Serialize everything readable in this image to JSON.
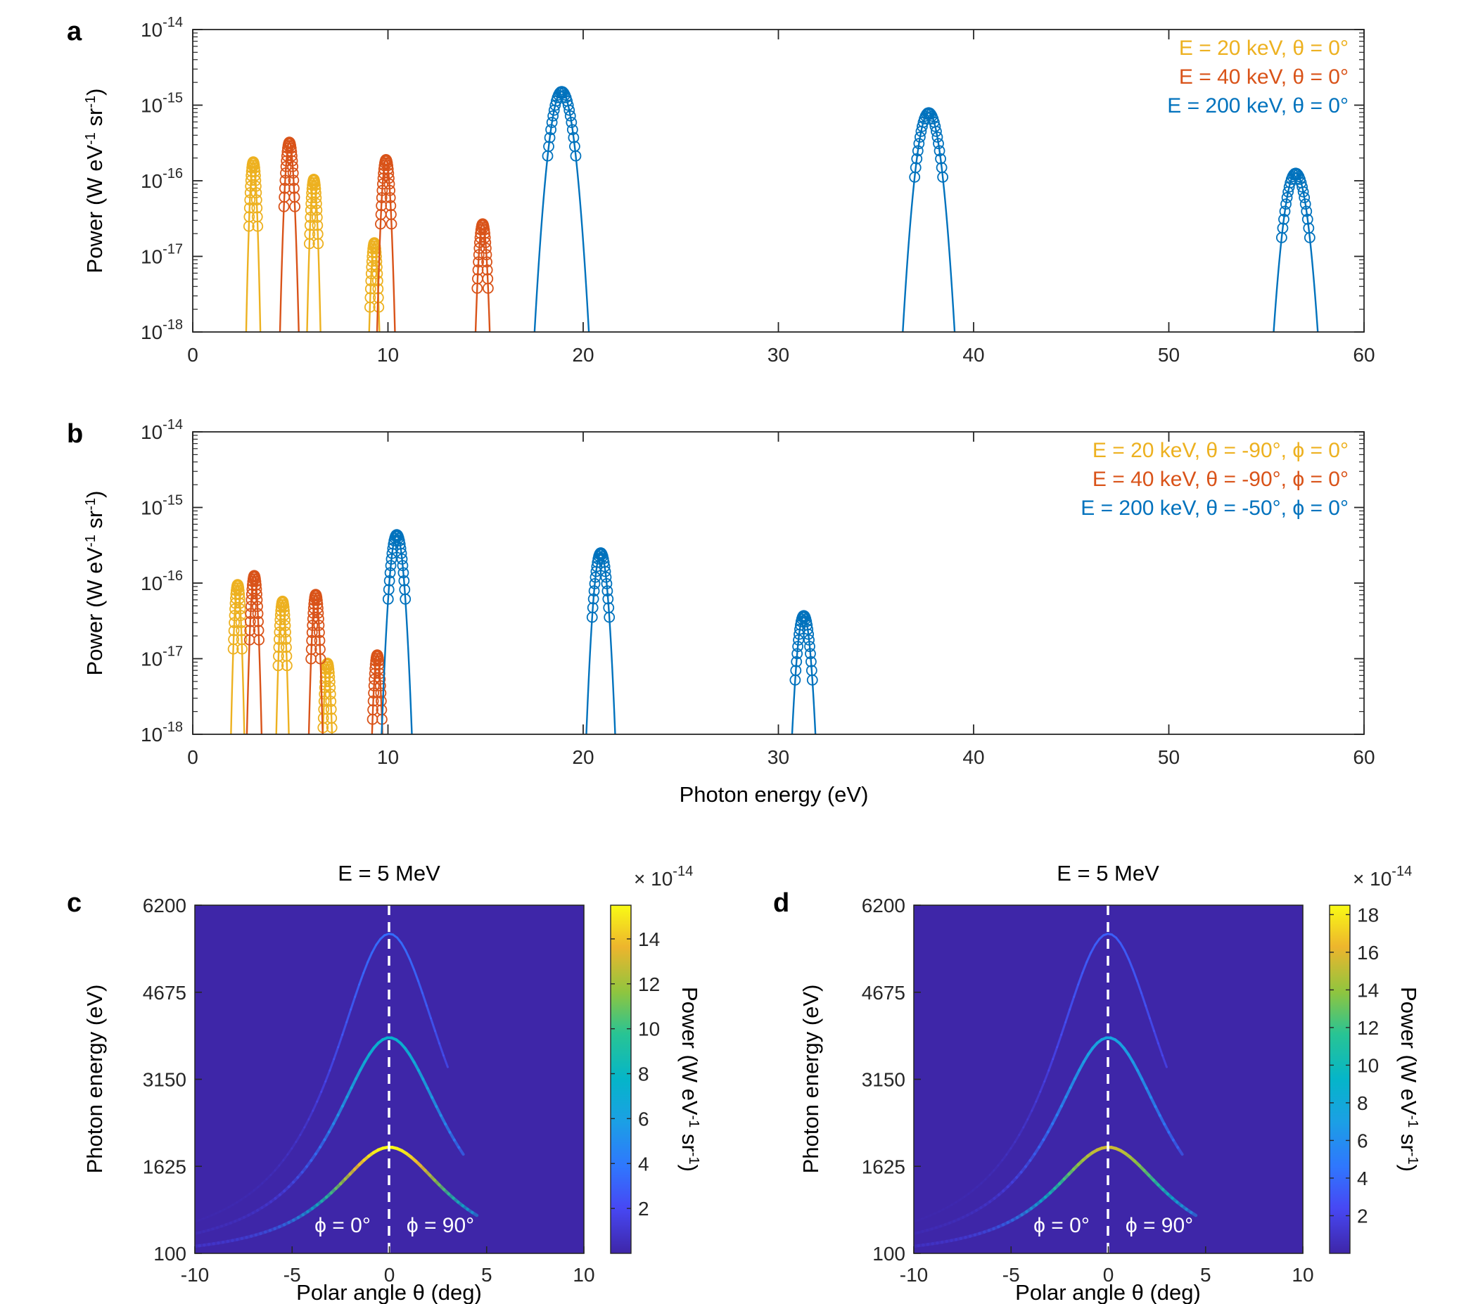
{
  "figure": {
    "panel_labels": [
      "a",
      "b",
      "c",
      "d"
    ],
    "colors": {
      "yellow": "#EDB120",
      "red": "#D95319",
      "blue": "#0072BD",
      "heat_bg": "#3E26A8"
    },
    "ylabel_base": "Power (W eV",
    "ylabel_rest": " sr",
    "ylabel_close": ")",
    "xlabel_ab": "Photon energy (eV)",
    "x_ticks_ab": [
      "0",
      "10",
      "20",
      "30",
      "40",
      "50",
      "60"
    ],
    "y_tick_base": "10",
    "y_tick_exps": [
      "-18",
      "-17",
      "-16",
      "-15",
      "-14"
    ],
    "heat_title": "E = 5 MeV",
    "heat_xlabel": "Polar angle θ (deg)",
    "heat_ylabel": "Photon energy (eV)",
    "heat_x_ticks": [
      "-10",
      "-5",
      "0",
      "5",
      "10"
    ],
    "heat_y_ticks": [
      "100",
      "1625",
      "3150",
      "4675",
      "6200"
    ],
    "phi_left": "ϕ = 0°",
    "phi_right": "ϕ = 90°",
    "cbar_label_base": "Power (W eV",
    "cbar_label_rest": " sr",
    "cbar_label_close": ")",
    "cbar_mult": "×",
    "cbar_exp_base": "10",
    "cbar_exp": "-14",
    "neg1": "-1"
  },
  "chart_data": [
    {
      "panel": "a",
      "type": "line",
      "xlabel": "Photon energy (eV)",
      "ylabel": "Power (W eV-1 sr-1)",
      "xlim": [
        0,
        60
      ],
      "ylim_log10": [
        -18,
        -14
      ],
      "legend": [
        "E = 20 keV,   θ = 0°",
        "E = 40 keV,   θ = 0°",
        "E = 200 keV, θ = 0°"
      ],
      "legend_position": "top-right",
      "series": [
        {
          "name": "E = 20 keV, θ = 0°",
          "color": "yellow",
          "peaks": [
            {
              "center": 3.1,
              "width": 0.28,
              "log10_peak": -15.75
            },
            {
              "center": 6.2,
              "width": 0.28,
              "log10_peak": -15.98
            },
            {
              "center": 9.3,
              "width": 0.28,
              "log10_peak": -16.82
            }
          ]
        },
        {
          "name": "E = 40 keV, θ = 0°",
          "color": "red",
          "peaks": [
            {
              "center": 4.95,
              "width": 0.35,
              "log10_peak": -15.49
            },
            {
              "center": 9.9,
              "width": 0.35,
              "log10_peak": -15.72
            },
            {
              "center": 14.85,
              "width": 0.35,
              "log10_peak": -16.57
            }
          ]
        },
        {
          "name": "E = 200 keV, θ = 0°",
          "color": "blue",
          "peaks": [
            {
              "center": 18.9,
              "width": 0.9,
              "log10_peak": -14.82
            },
            {
              "center": 37.7,
              "width": 0.9,
              "log10_peak": -15.1
            },
            {
              "center": 56.5,
              "width": 0.9,
              "log10_peak": -15.9
            }
          ]
        }
      ]
    },
    {
      "panel": "b",
      "type": "line",
      "xlabel": "Photon energy (eV)",
      "ylabel": "Power (W eV-1 sr-1)",
      "xlim": [
        0,
        60
      ],
      "ylim_log10": [
        -18,
        -14
      ],
      "legend": [
        "E = 20 keV,   θ = -90°, ϕ = 0°",
        "E = 40 keV,   θ = -90°, ϕ = 0°",
        "E = 200 keV, θ = -50°, ϕ = 0°"
      ],
      "legend_position": "top-right",
      "series": [
        {
          "name": "E = 20 keV, θ = -90°, ϕ = 0°",
          "color": "yellow",
          "peaks": [
            {
              "center": 2.3,
              "width": 0.28,
              "log10_peak": -16.02
            },
            {
              "center": 4.6,
              "width": 0.28,
              "log10_peak": -16.24
            },
            {
              "center": 6.9,
              "width": 0.28,
              "log10_peak": -17.06
            }
          ]
        },
        {
          "name": "E = 40 keV, θ = -90°, ϕ = 0°",
          "color": "red",
          "peaks": [
            {
              "center": 3.15,
              "width": 0.3,
              "log10_peak": -15.9
            },
            {
              "center": 6.3,
              "width": 0.3,
              "log10_peak": -16.15
            },
            {
              "center": 9.45,
              "width": 0.3,
              "log10_peak": -16.95
            }
          ]
        },
        {
          "name": "E = 200 keV, θ = -50°, ϕ = 0°",
          "color": "blue",
          "peaks": [
            {
              "center": 10.45,
              "width": 0.55,
              "log10_peak": -15.36
            },
            {
              "center": 20.9,
              "width": 0.55,
              "log10_peak": -15.6
            },
            {
              "center": 31.3,
              "width": 0.55,
              "log10_peak": -16.43
            }
          ]
        }
      ]
    },
    {
      "panel": "c",
      "type": "heatmap",
      "title": "E = 5 MeV",
      "xlabel": "Polar angle θ (deg)",
      "ylabel": "Photon energy (eV)",
      "xlim": [
        -10,
        10
      ],
      "ylim": [
        100,
        6200
      ],
      "colorbar_label": "Power (W eV-1 sr-1)",
      "colorbar_scale": "×10^-14",
      "colorbar_ticks": [
        2,
        4,
        6,
        8,
        10,
        12,
        14
      ],
      "colorbar_max": 15.5,
      "divider_theta": 0,
      "annotations": [
        "ϕ = 0°",
        "ϕ = 90°"
      ],
      "harmonic_peaks_eV": [
        1960,
        3880,
        5700
      ],
      "harmonic_max": [
        15.5,
        7.5,
        3.5
      ]
    },
    {
      "panel": "d",
      "type": "heatmap",
      "title": "E = 5 MeV",
      "xlabel": "Polar angle θ (deg)",
      "ylabel": "Photon energy (eV)",
      "xlim": [
        -10,
        10
      ],
      "ylim": [
        100,
        6200
      ],
      "colorbar_label": "Power (W eV-1 sr-1)",
      "colorbar_scale": "×10^-14",
      "colorbar_ticks": [
        2,
        4,
        6,
        8,
        10,
        12,
        14,
        16,
        18
      ],
      "colorbar_max": 18.5,
      "divider_theta": 0,
      "annotations": [
        "ϕ = 0°",
        "ϕ = 90°"
      ],
      "harmonic_peaks_eV": [
        1960,
        3880,
        5700
      ],
      "harmonic_max": [
        15.5,
        7.5,
        3.5
      ]
    }
  ]
}
